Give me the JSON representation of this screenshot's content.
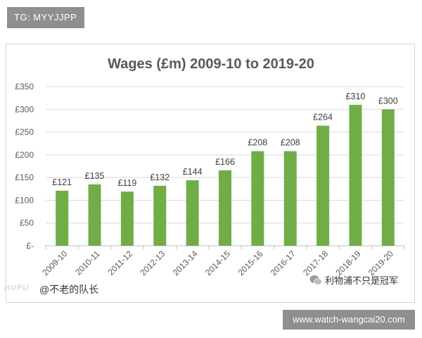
{
  "watermarks": {
    "tag": "TG: MYYJJPP",
    "hupu": "HUPU",
    "author": "@不老的队长",
    "wechat": "利物浦不只是冠军",
    "url": "www.watch-wangcai20.com"
  },
  "colors": {
    "bar": "#70ad47",
    "grid": "#d9d9d9",
    "text": "#595959"
  },
  "chart_data": {
    "type": "bar",
    "title": "Wages (£m) 2009-10 to 2019-20",
    "categories": [
      "2009-10",
      "2010-11",
      "2011-12",
      "2012-13",
      "2013-14",
      "2014-15",
      "2015-16",
      "2016-17",
      "2017-18",
      "2018-19",
      "2019-20"
    ],
    "values": [
      121,
      135,
      119,
      132,
      144,
      166,
      208,
      208,
      264,
      310,
      300
    ],
    "data_labels": [
      "£121",
      "£135",
      "£119",
      "£132",
      "£144",
      "£166",
      "£208",
      "£208",
      "£264",
      "£310",
      "£300"
    ],
    "y_ticks": [
      "£-",
      "£50",
      "£100",
      "£150",
      "£200",
      "£250",
      "£300",
      "£350"
    ],
    "ylim": [
      0,
      350
    ],
    "grid": true
  }
}
